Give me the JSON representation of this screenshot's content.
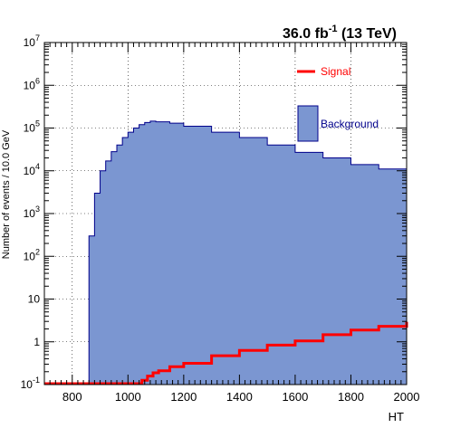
{
  "chart_data": {
    "type": "histogram",
    "header": {
      "lumi": "36.0 fb",
      "lumi_exp": "-1",
      "energy": " (13 TeV)"
    },
    "xlabel": "HT",
    "ylabel": "Number of events / 10.0 GeV",
    "xlim": [
      700,
      2000
    ],
    "ylim_log10": [
      -1,
      7
    ],
    "yscale": "log",
    "grid": true,
    "x_ticks": [
      "800",
      "1000",
      "1200",
      "1400",
      "1600",
      "1800",
      "2000"
    ],
    "y_ticks": [
      {
        "base": "10",
        "exp": "7"
      },
      {
        "base": "10",
        "exp": "6"
      },
      {
        "base": "10",
        "exp": "5"
      },
      {
        "base": "10",
        "exp": "4"
      },
      {
        "base": "10",
        "exp": "3"
      },
      {
        "base": "10",
        "exp": "2"
      },
      {
        "base": "10",
        "exp": ""
      },
      {
        "base": "1",
        "exp": ""
      },
      {
        "base": "10",
        "exp": "-1"
      }
    ],
    "legend": {
      "placement": "top-right",
      "signal": "Signal",
      "background": "Background"
    },
    "colors": {
      "background_fill": "#7b96d1",
      "background_line": "#00008b",
      "signal": "#ff0000",
      "grid": "#000000"
    },
    "background": {
      "name": "Background",
      "x": [
        860,
        880,
        900,
        920,
        940,
        960,
        980,
        1000,
        1020,
        1040,
        1060,
        1080,
        1100,
        1150,
        1200,
        1300,
        1400,
        1500,
        1600,
        1700,
        1800,
        1900,
        2000
      ],
      "y": [
        300,
        3000,
        10000,
        17000,
        28000,
        40000,
        60000,
        80000,
        100000,
        120000,
        135000,
        145000,
        140000,
        130000,
        110000,
        80000,
        60000,
        40000,
        27000,
        20000,
        14000,
        11000,
        8000
      ]
    },
    "signal": {
      "name": "Signal",
      "x": [
        700,
        1040,
        1050,
        1070,
        1090,
        1110,
        1150,
        1200,
        1300,
        1400,
        1500,
        1600,
        1700,
        1800,
        1900,
        2000
      ],
      "y": [
        0.1,
        0.1,
        0.12,
        0.15,
        0.18,
        0.2,
        0.25,
        0.3,
        0.45,
        0.6,
        0.8,
        1.0,
        1.4,
        1.8,
        2.2,
        2.8
      ]
    }
  }
}
